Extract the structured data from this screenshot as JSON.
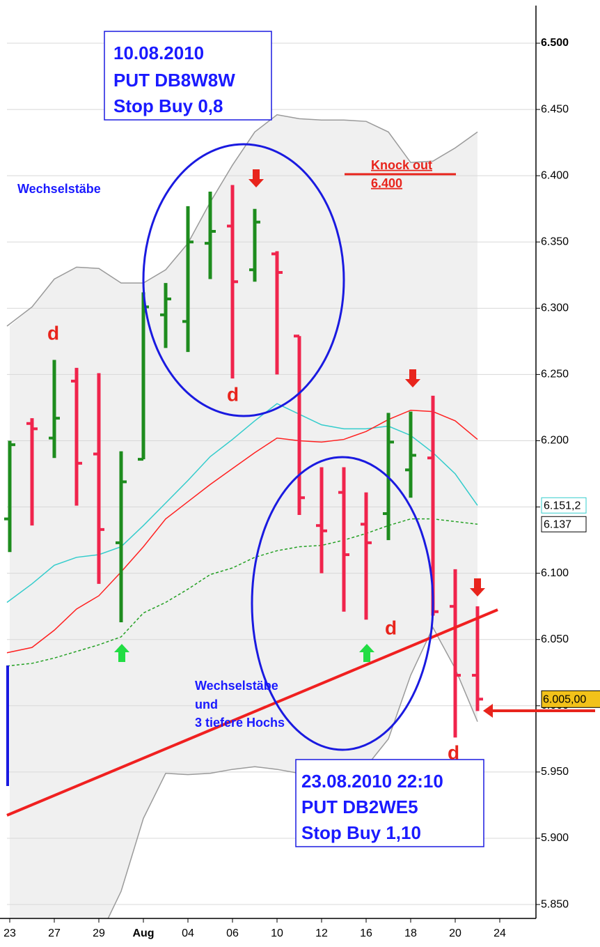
{
  "chart_data": {
    "type": "ohlc",
    "categories": [
      "23",
      null,
      "27",
      null,
      "29",
      null,
      "Aug",
      null,
      "04",
      null,
      "06",
      null,
      "10",
      null,
      "12",
      null,
      "16",
      null,
      "18",
      null,
      "20",
      null,
      "24"
    ],
    "open": [
      6.141,
      6.213,
      6.202,
      6.245,
      6.19,
      6.123,
      6.186,
      6.295,
      6.29,
      6.349,
      6.362,
      6.329,
      6.341,
      6.279,
      6.136,
      6.161,
      6.137,
      6.145,
      6.178,
      6.187,
      6.075,
      6.023,
      null
    ],
    "high": [
      6.2,
      6.217,
      6.261,
      6.255,
      6.251,
      6.192,
      6.312,
      6.319,
      6.377,
      6.388,
      6.393,
      6.375,
      6.343,
      6.279,
      6.18,
      6.18,
      6.161,
      6.221,
      6.222,
      6.234,
      6.103,
      6.075,
      null
    ],
    "low": [
      6.116,
      6.136,
      6.187,
      6.151,
      6.092,
      6.063,
      6.186,
      6.27,
      6.267,
      6.322,
      6.247,
      6.32,
      6.25,
      6.144,
      6.1,
      6.071,
      6.065,
      6.125,
      6.157,
      6.068,
      5.976,
      5.996,
      null
    ],
    "close": [
      6.197,
      6.209,
      6.217,
      6.183,
      6.133,
      6.169,
      6.301,
      6.307,
      6.35,
      6.358,
      6.32,
      6.365,
      6.327,
      6.157,
      6.132,
      6.114,
      6.123,
      6.199,
      6.189,
      6.071,
      6.023,
      6.005,
      null
    ],
    "close_label": "6.005,00",
    "up_color": "#1e8c1e",
    "down_color": "#f0244c",
    "bands": {
      "color": "#9a9a9a",
      "fill": "#f0f0f0",
      "upper": [
        6.2865,
        6.301,
        6.322,
        6.331,
        6.33,
        6.319,
        6.319,
        6.329,
        6.349,
        6.38,
        6.408,
        6.433,
        6.446,
        6.443,
        6.442,
        6.442,
        6.441,
        6.433,
        6.41,
        6.411,
        6.421,
        6.433,
        null
      ],
      "lower": [
        null,
        null,
        null,
        null,
        5.825,
        5.86,
        5.915,
        5.949,
        5.948,
        5.949,
        5.952,
        5.954,
        5.952,
        5.949,
        5.946,
        5.944,
        5.954,
        5.975,
        6.023,
        6.059,
        6.028,
        5.988,
        null
      ]
    },
    "lines": [
      {
        "color": "#33cccc",
        "dashed": false,
        "values": [
          6.078,
          6.092,
          6.106,
          6.112,
          6.114,
          6.12,
          6.136,
          6.153,
          6.17,
          6.188,
          6.201,
          6.215,
          6.228,
          6.22,
          6.212,
          6.209,
          6.209,
          6.211,
          6.204,
          6.191,
          6.175,
          6.1512,
          null
        ],
        "last_label": "6.151,2"
      },
      {
        "color": "#ff2020",
        "dashed": false,
        "values": [
          6.04,
          6.044,
          6.057,
          6.073,
          6.083,
          6.101,
          6.12,
          6.141,
          6.154,
          6.167,
          6.179,
          6.191,
          6.202,
          6.2,
          6.199,
          6.201,
          6.207,
          6.216,
          6.223,
          6.222,
          6.215,
          6.201,
          null
        ]
      },
      {
        "color": "#22a022",
        "dashed": true,
        "values": [
          6.03,
          6.032,
          6.036,
          6.041,
          6.046,
          6.052,
          6.07,
          6.078,
          6.088,
          6.099,
          6.104,
          6.112,
          6.117,
          6.12,
          6.121,
          6.125,
          6.13,
          6.136,
          6.141,
          6.141,
          6.139,
          6.137,
          null
        ],
        "last_label": "6.137"
      }
    ],
    "ylim": [
      5.8395,
      6.5326
    ],
    "yticks": [
      {
        "value": 5.85,
        "label": "5.850"
      },
      {
        "value": 5.9,
        "label": "5.900"
      },
      {
        "value": 5.95,
        "label": "5.950"
      },
      {
        "value": 6.0,
        "label": "6.000"
      },
      {
        "value": 6.05,
        "label": "6.050"
      },
      {
        "value": 6.1,
        "label": "6.100"
      },
      {
        "value": 6.15,
        "label": "6.150"
      },
      {
        "value": 6.2,
        "label": "6.200"
      },
      {
        "value": 6.25,
        "label": "6.250"
      },
      {
        "value": 6.3,
        "label": "6.300"
      },
      {
        "value": 6.35,
        "label": "6.350"
      },
      {
        "value": 6.4,
        "label": "6.400"
      },
      {
        "value": 6.45,
        "label": "6.450"
      },
      {
        "value": 6.5,
        "label": "6.500"
      }
    ],
    "grid": true,
    "annotations": {
      "box1": [
        "10.08.2010",
        "PUT DB8W8W",
        "Stop Buy 0,8"
      ],
      "box2": [
        "23.08.2010 22:10",
        "PUT DB2WE5",
        "Stop Buy 1,10"
      ],
      "wechsel1": "Wechselstäbe",
      "wechsel2": [
        "Wechselstäbe",
        "und",
        "3 tiefere Hochs"
      ],
      "knockout": [
        "Knock out",
        "6.400"
      ],
      "d_marks": [
        "d",
        "d",
        "d",
        "d"
      ]
    }
  }
}
